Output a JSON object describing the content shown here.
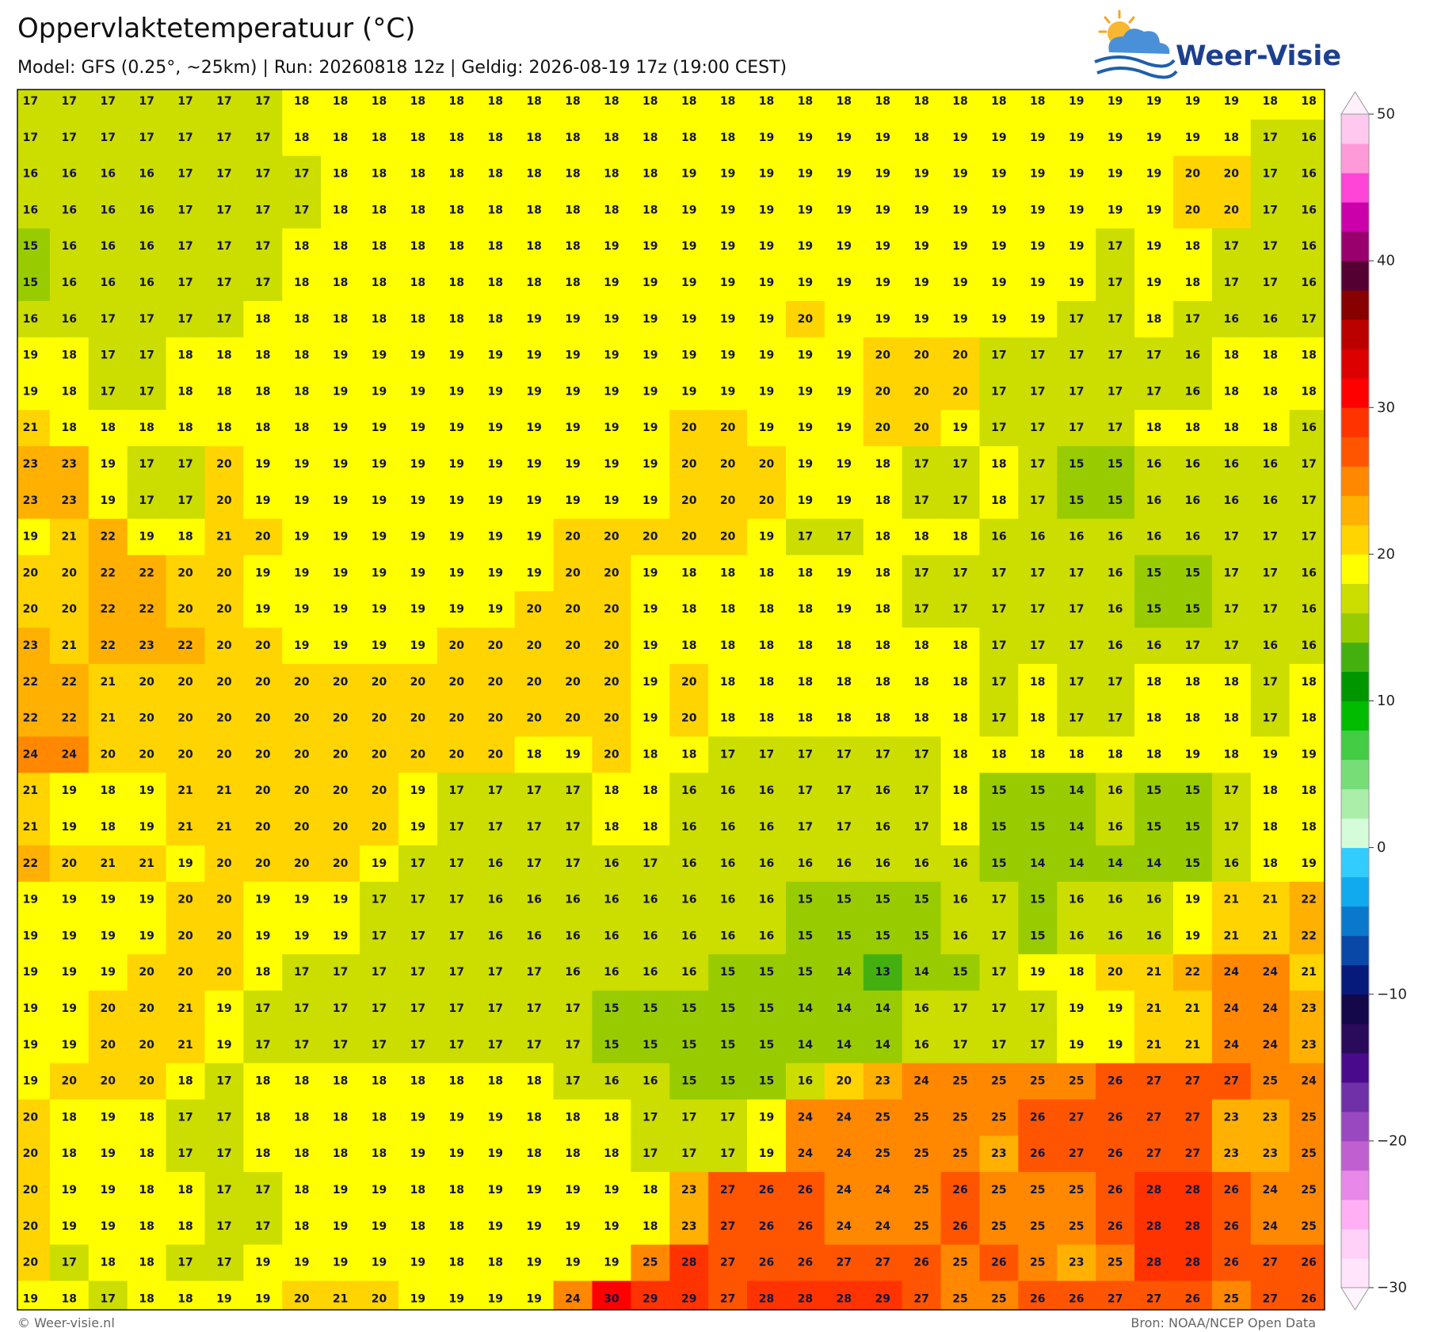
{
  "header": {
    "title": "Oppervlaktetemperatuur (°C)",
    "subtitle": "Model: GFS (0.25°, ~25km)  |  Run: 20260818 12z  |  Geldig: 2026-08-19 17z (19:00 CEST)",
    "logo": "Weer-Visie"
  },
  "map": {
    "values": [
      [
        17,
        17,
        17,
        17,
        17,
        17,
        17,
        18,
        18,
        18,
        18,
        18,
        18,
        18,
        18,
        18,
        18,
        18,
        18,
        18,
        18,
        18,
        18,
        18,
        18,
        18,
        18,
        19,
        19,
        19,
        19,
        19,
        18,
        18
      ],
      [
        17,
        17,
        17,
        17,
        17,
        17,
        17,
        18,
        18,
        18,
        18,
        18,
        18,
        18,
        18,
        18,
        18,
        18,
        18,
        19,
        19,
        19,
        19,
        18,
        19,
        19,
        19,
        19,
        19,
        19,
        19,
        18,
        17,
        16
      ],
      [
        16,
        16,
        16,
        16,
        17,
        17,
        17,
        17,
        18,
        18,
        18,
        18,
        18,
        18,
        18,
        18,
        18,
        19,
        19,
        19,
        19,
        19,
        19,
        19,
        19,
        19,
        19,
        19,
        19,
        19,
        20,
        20,
        17,
        16
      ],
      [
        16,
        16,
        16,
        16,
        17,
        17,
        17,
        17,
        18,
        18,
        18,
        18,
        18,
        18,
        18,
        18,
        18,
        19,
        19,
        19,
        19,
        19,
        19,
        19,
        19,
        19,
        19,
        19,
        19,
        19,
        20,
        20,
        17,
        16
      ],
      [
        15,
        16,
        16,
        16,
        17,
        17,
        17,
        18,
        18,
        18,
        18,
        18,
        18,
        18,
        18,
        19,
        19,
        19,
        19,
        19,
        19,
        19,
        19,
        19,
        19,
        19,
        19,
        19,
        17,
        19,
        18,
        17,
        17,
        16
      ],
      [
        15,
        16,
        16,
        16,
        17,
        17,
        17,
        18,
        18,
        18,
        18,
        18,
        18,
        18,
        18,
        19,
        19,
        19,
        19,
        19,
        19,
        19,
        19,
        19,
        19,
        19,
        19,
        19,
        17,
        19,
        18,
        17,
        17,
        16
      ],
      [
        16,
        16,
        17,
        17,
        17,
        17,
        18,
        18,
        18,
        18,
        18,
        18,
        18,
        19,
        19,
        19,
        19,
        19,
        19,
        19,
        20,
        19,
        19,
        19,
        19,
        19,
        19,
        17,
        17,
        18,
        17,
        16,
        16,
        17
      ],
      [
        19,
        18,
        17,
        17,
        18,
        18,
        18,
        18,
        19,
        19,
        19,
        19,
        19,
        19,
        19,
        19,
        19,
        19,
        19,
        19,
        19,
        19,
        20,
        20,
        20,
        17,
        17,
        17,
        17,
        17,
        16,
        18,
        18,
        18
      ],
      [
        19,
        18,
        17,
        17,
        18,
        18,
        18,
        18,
        19,
        19,
        19,
        19,
        19,
        19,
        19,
        19,
        19,
        19,
        19,
        19,
        19,
        19,
        20,
        20,
        20,
        17,
        17,
        17,
        17,
        17,
        16,
        18,
        18,
        18
      ],
      [
        21,
        18,
        18,
        18,
        18,
        18,
        18,
        18,
        19,
        19,
        19,
        19,
        19,
        19,
        19,
        19,
        19,
        20,
        20,
        19,
        19,
        19,
        20,
        20,
        19,
        17,
        17,
        17,
        17,
        18,
        18,
        18,
        18,
        16
      ],
      [
        23,
        23,
        19,
        17,
        17,
        20,
        19,
        19,
        19,
        19,
        19,
        19,
        19,
        19,
        19,
        19,
        19,
        20,
        20,
        20,
        19,
        19,
        18,
        17,
        17,
        18,
        17,
        15,
        15,
        16,
        16,
        16,
        16,
        17
      ],
      [
        23,
        23,
        19,
        17,
        17,
        20,
        19,
        19,
        19,
        19,
        19,
        19,
        19,
        19,
        19,
        19,
        19,
        20,
        20,
        20,
        19,
        19,
        18,
        17,
        17,
        18,
        17,
        15,
        15,
        16,
        16,
        16,
        16,
        17
      ],
      [
        19,
        21,
        22,
        19,
        18,
        21,
        20,
        19,
        19,
        19,
        19,
        19,
        19,
        19,
        20,
        20,
        20,
        20,
        20,
        19,
        17,
        17,
        18,
        18,
        18,
        16,
        16,
        16,
        16,
        16,
        16,
        17,
        17,
        17
      ],
      [
        20,
        20,
        22,
        22,
        20,
        20,
        19,
        19,
        19,
        19,
        19,
        19,
        19,
        19,
        20,
        20,
        19,
        18,
        18,
        18,
        18,
        19,
        18,
        17,
        17,
        17,
        17,
        17,
        16,
        15,
        15,
        17,
        17,
        16
      ],
      [
        20,
        20,
        22,
        22,
        20,
        20,
        19,
        19,
        19,
        19,
        19,
        19,
        19,
        20,
        20,
        20,
        19,
        18,
        18,
        18,
        18,
        19,
        18,
        17,
        17,
        17,
        17,
        17,
        16,
        15,
        15,
        17,
        17,
        16
      ],
      [
        23,
        21,
        22,
        23,
        22,
        20,
        20,
        19,
        19,
        19,
        19,
        20,
        20,
        20,
        20,
        20,
        19,
        18,
        18,
        18,
        18,
        18,
        18,
        18,
        18,
        17,
        17,
        17,
        16,
        16,
        17,
        17,
        16,
        16
      ],
      [
        22,
        22,
        21,
        20,
        20,
        20,
        20,
        20,
        20,
        20,
        20,
        20,
        20,
        20,
        20,
        20,
        19,
        20,
        18,
        18,
        18,
        18,
        18,
        18,
        18,
        17,
        18,
        17,
        17,
        18,
        18,
        18,
        17,
        18
      ],
      [
        22,
        22,
        21,
        20,
        20,
        20,
        20,
        20,
        20,
        20,
        20,
        20,
        20,
        20,
        20,
        20,
        19,
        20,
        18,
        18,
        18,
        18,
        18,
        18,
        18,
        17,
        18,
        17,
        17,
        18,
        18,
        18,
        17,
        18
      ],
      [
        24,
        24,
        20,
        20,
        20,
        20,
        20,
        20,
        20,
        20,
        20,
        20,
        20,
        18,
        19,
        20,
        18,
        18,
        17,
        17,
        17,
        17,
        17,
        17,
        18,
        18,
        18,
        18,
        18,
        18,
        19,
        18,
        19,
        19
      ],
      [
        21,
        19,
        18,
        19,
        21,
        21,
        20,
        20,
        20,
        20,
        19,
        17,
        17,
        17,
        17,
        18,
        18,
        16,
        16,
        16,
        17,
        17,
        16,
        17,
        18,
        15,
        15,
        14,
        16,
        15,
        15,
        17,
        18,
        18
      ],
      [
        21,
        19,
        18,
        19,
        21,
        21,
        20,
        20,
        20,
        20,
        19,
        17,
        17,
        17,
        17,
        18,
        18,
        16,
        16,
        16,
        17,
        17,
        16,
        17,
        18,
        15,
        15,
        14,
        16,
        15,
        15,
        17,
        18,
        18
      ],
      [
        22,
        20,
        21,
        21,
        19,
        20,
        20,
        20,
        20,
        19,
        17,
        17,
        16,
        17,
        17,
        16,
        17,
        16,
        16,
        16,
        16,
        16,
        16,
        16,
        16,
        15,
        14,
        14,
        14,
        14,
        15,
        16,
        18,
        19
      ],
      [
        19,
        19,
        19,
        19,
        20,
        20,
        19,
        19,
        19,
        17,
        17,
        17,
        16,
        16,
        16,
        16,
        16,
        16,
        16,
        16,
        15,
        15,
        15,
        15,
        16,
        17,
        15,
        16,
        16,
        16,
        19,
        21,
        21,
        22
      ],
      [
        19,
        19,
        19,
        19,
        20,
        20,
        19,
        19,
        19,
        17,
        17,
        17,
        16,
        16,
        16,
        16,
        16,
        16,
        16,
        16,
        15,
        15,
        15,
        15,
        16,
        17,
        15,
        16,
        16,
        16,
        19,
        21,
        21,
        22
      ],
      [
        19,
        19,
        19,
        20,
        20,
        20,
        18,
        17,
        17,
        17,
        17,
        17,
        17,
        17,
        16,
        16,
        16,
        16,
        15,
        15,
        15,
        14,
        13,
        14,
        15,
        17,
        19,
        18,
        20,
        21,
        22,
        24,
        24,
        21
      ],
      [
        19,
        19,
        20,
        20,
        21,
        19,
        17,
        17,
        17,
        17,
        17,
        17,
        17,
        17,
        17,
        15,
        15,
        15,
        15,
        15,
        14,
        14,
        14,
        16,
        17,
        17,
        17,
        19,
        19,
        21,
        21,
        24,
        24,
        23
      ],
      [
        19,
        19,
        20,
        20,
        21,
        19,
        17,
        17,
        17,
        17,
        17,
        17,
        17,
        17,
        17,
        15,
        15,
        15,
        15,
        15,
        14,
        14,
        14,
        16,
        17,
        17,
        17,
        19,
        19,
        21,
        21,
        24,
        24,
        23
      ],
      [
        19,
        20,
        20,
        20,
        18,
        17,
        18,
        18,
        18,
        18,
        18,
        18,
        18,
        18,
        17,
        16,
        16,
        15,
        15,
        15,
        16,
        20,
        23,
        24,
        25,
        25,
        25,
        25,
        26,
        27,
        27,
        27,
        25,
        24
      ],
      [
        20,
        18,
        19,
        18,
        17,
        17,
        18,
        18,
        18,
        18,
        19,
        19,
        19,
        18,
        18,
        18,
        17,
        17,
        17,
        19,
        24,
        24,
        25,
        25,
        25,
        25,
        26,
        27,
        26,
        27,
        27,
        23,
        23,
        25
      ],
      [
        20,
        18,
        19,
        18,
        17,
        17,
        18,
        18,
        18,
        18,
        19,
        19,
        19,
        18,
        18,
        18,
        17,
        17,
        17,
        19,
        24,
        24,
        25,
        25,
        25,
        23,
        26,
        27,
        26,
        27,
        27,
        23,
        23,
        25
      ],
      [
        20,
        19,
        19,
        18,
        18,
        17,
        17,
        18,
        19,
        19,
        18,
        18,
        19,
        19,
        19,
        19,
        18,
        23,
        27,
        26,
        26,
        24,
        24,
        25,
        26,
        25,
        25,
        25,
        26,
        28,
        28,
        26,
        24,
        25
      ],
      [
        20,
        19,
        19,
        18,
        18,
        17,
        17,
        18,
        19,
        19,
        18,
        18,
        19,
        19,
        19,
        19,
        18,
        23,
        27,
        26,
        26,
        24,
        24,
        25,
        26,
        25,
        25,
        25,
        26,
        28,
        28,
        26,
        24,
        25
      ],
      [
        20,
        17,
        18,
        18,
        17,
        17,
        19,
        19,
        19,
        19,
        19,
        18,
        18,
        19,
        19,
        19,
        25,
        28,
        27,
        26,
        26,
        27,
        27,
        26,
        25,
        26,
        25,
        23,
        25,
        28,
        28,
        26,
        27,
        26
      ],
      [
        19,
        18,
        17,
        18,
        18,
        19,
        19,
        20,
        21,
        20,
        19,
        19,
        19,
        19,
        24,
        30,
        29,
        29,
        27,
        28,
        28,
        28,
        29,
        27,
        25,
        25,
        26,
        26,
        27,
        27,
        26,
        25,
        27,
        26
      ]
    ]
  },
  "colorbar": {
    "lim": [
      -30,
      50
    ],
    "ticks": [
      50,
      40,
      30,
      20,
      10,
      0,
      {
        "value": -10,
        "label": "−10"
      },
      {
        "value": -20,
        "label": "−20"
      },
      {
        "value": -30,
        "label": "−30"
      }
    ],
    "colors": [
      "#ffe4fc",
      "#ffd0f8",
      "#ffb0f4",
      "#e888e8",
      "#c060d0",
      "#9a48c0",
      "#7030a8",
      "#4a0a8c",
      "#2a0a5a",
      "#14084a",
      "#051a7a",
      "#0a48a8",
      "#0a78cc",
      "#11aaee",
      "#33ccff",
      "#d4fcd8",
      "#aaeeaa",
      "#77dd77",
      "#44cc44",
      "#00bb00",
      "#009600",
      "#44b010",
      "#99cc00",
      "#ccdd00",
      "#ffff00",
      "#ffd400",
      "#ffb000",
      "#ff8800",
      "#ff5500",
      "#ff3300",
      "#ff0000",
      "#dd0000",
      "#bb0000",
      "#880000",
      "#550033",
      "#99006e",
      "#cc00aa",
      "#ff44d8",
      "#ff9ad8",
      "#ffc8ee"
    ],
    "over_color": "#fff0fb",
    "under_color": "#fff4ff"
  },
  "footer": {
    "left": "© Weer-visie.nl",
    "right": "Bron: NOAA/NCEP Open Data"
  }
}
